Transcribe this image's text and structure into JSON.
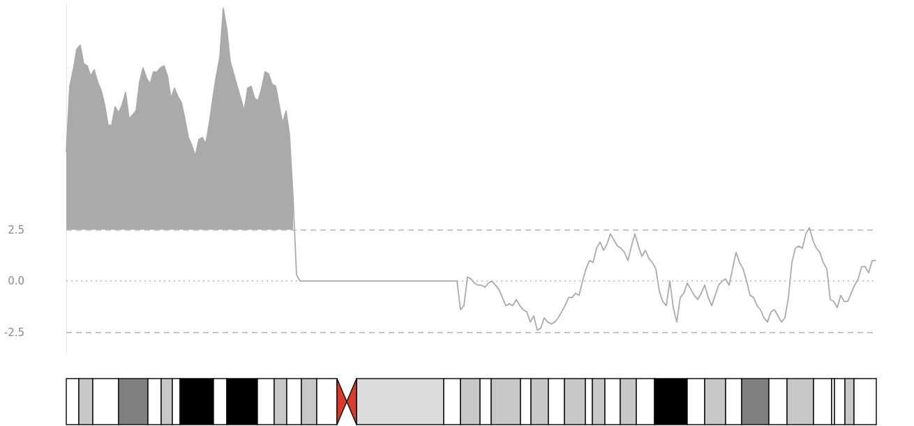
{
  "chart_data": {
    "type": "line",
    "categories": [
      null,
      null,
      null,
      null,
      null,
      null,
      null,
      null,
      null,
      null,
      null,
      null,
      null,
      null,
      null,
      null,
      null,
      null,
      null,
      null,
      null,
      null,
      null,
      null,
      null,
      null,
      null,
      null,
      null,
      null,
      null,
      null,
      null,
      null,
      null,
      null,
      null,
      null,
      null,
      null,
      null,
      null,
      null,
      null,
      null,
      null,
      null,
      null,
      null,
      null,
      null,
      null,
      null,
      null,
      null,
      null,
      null,
      null,
      null,
      null,
      null,
      null,
      null,
      null,
      null,
      null,
      null,
      null,
      null,
      null,
      null,
      null,
      null,
      null,
      null,
      null,
      null,
      null,
      null,
      null,
      null,
      null,
      null,
      null,
      null,
      null,
      null,
      null,
      null,
      null,
      null,
      null,
      null,
      null,
      null,
      null,
      null,
      null,
      null,
      null,
      null,
      null,
      null,
      null,
      null,
      null,
      null,
      null,
      null,
      null,
      null,
      null,
      null,
      null,
      null,
      null,
      null,
      null,
      null,
      null,
      null,
      null,
      null,
      null,
      null,
      null,
      null,
      null,
      null,
      null,
      null,
      null,
      null,
      null,
      null,
      null,
      null,
      null,
      null,
      null,
      null,
      null,
      null,
      null,
      null,
      null,
      null,
      null,
      null,
      null,
      null,
      null,
      null,
      null,
      null,
      null,
      null,
      null,
      null,
      null,
      null,
      null,
      null,
      null,
      null,
      null,
      null,
      null,
      null,
      null,
      null,
      null,
      null,
      null,
      null,
      null,
      null,
      null,
      null,
      null,
      null,
      null,
      null,
      null,
      null,
      null,
      null,
      null,
      null,
      null,
      null,
      null,
      null,
      null,
      null,
      null,
      null,
      null,
      null,
      null,
      null,
      null,
      null,
      null,
      null,
      null,
      null,
      null,
      null,
      null,
      null,
      null,
      null,
      null,
      null,
      null,
      null,
      null,
      null,
      null,
      null,
      null,
      null,
      null,
      null,
      null,
      null,
      null,
      null,
      null,
      null,
      null,
      null
    ],
    "series": [
      {
        "color": "#aaaaaa",
        "values": [
          6.3,
          9.5,
          10.3,
          11.3,
          11.5,
          10.6,
          10.5,
          10.0,
          10.3,
          9.7,
          9.3,
          8.6,
          7.6,
          7.6,
          8.5,
          8.2,
          8.6,
          9.2,
          7.9,
          8.1,
          8.3,
          9.7,
          10.4,
          9.9,
          9.6,
          10.2,
          10.2,
          10.4,
          10.5,
          10.0,
          8.9,
          9.4,
          9.0,
          8.7,
          7.9,
          7.0,
          6.6,
          6.1,
          6.9,
          7.0,
          6.7,
          7.7,
          8.9,
          10.0,
          10.9,
          13.3,
          12.3,
          10.7,
          10.1,
          9.5,
          8.9,
          8.3,
          9.4,
          9.5,
          8.9,
          8.8,
          9.4,
          10.2,
          10.1,
          9.6,
          9.5,
          8.6,
          7.7,
          8.3,
          7.1,
          4.1,
          0.3,
          0,
          0,
          0,
          0,
          0,
          0,
          0,
          0,
          0,
          0,
          0,
          0,
          0,
          0,
          0,
          0,
          0,
          0,
          0,
          0,
          0,
          0,
          0,
          0,
          0,
          0,
          0,
          0,
          0,
          0,
          0,
          0,
          0,
          0,
          0,
          0,
          0,
          0,
          0,
          0,
          0,
          0,
          0,
          0,
          0,
          0,
          -1.4,
          -1.2,
          0.2,
          0.1,
          -0.1,
          -0.2,
          -0.2,
          -0.3,
          -0.1,
          0.0,
          -0.2,
          -0.4,
          -0.8,
          -1.2,
          -1.1,
          -1.2,
          -0.9,
          -1.2,
          -1.4,
          -1.5,
          -2.0,
          -1.7,
          -2.4,
          -2.3,
          -1.8,
          -2.0,
          -2.1,
          -2.0,
          -1.8,
          -1.5,
          -1.2,
          -0.8,
          -0.8,
          -0.6,
          -0.7,
          0.0,
          0.6,
          1.0,
          0.9,
          1.6,
          1.9,
          1.5,
          1.8,
          2.3,
          2.0,
          1.7,
          1.6,
          1.4,
          1.0,
          1.7,
          2.3,
          1.7,
          1.2,
          1.5,
          1.1,
          0.9,
          0.6,
          -0.5,
          -1.0,
          -1.2,
          0.0,
          -1.3,
          -2.0,
          -0.8,
          -0.6,
          -0.1,
          -0.4,
          -0.7,
          -0.9,
          -0.6,
          -0.2,
          -0.8,
          -1.2,
          -0.7,
          -0.2,
          0.0,
          0.1,
          -0.2,
          0.6,
          1.4,
          0.9,
          0.6,
          0.0,
          -0.7,
          -0.8,
          -1.2,
          -1.4,
          -1.8,
          -2.0,
          -1.5,
          -1.4,
          -1.7,
          -2.0,
          -1.8,
          -0.8,
          0.9,
          1.6,
          1.7,
          1.6,
          2.3,
          2.6,
          2.0,
          1.6,
          1.4,
          0.9,
          0.6,
          -0.9,
          -1.0,
          -1.3,
          -0.7,
          -1.0,
          -1.0,
          -0.6,
          -0.2,
          0.1,
          0.7,
          0.7,
          0.4,
          1.0,
          1.0
        ],
        "lower": [
          2.5,
          2.5,
          2.5,
          2.5,
          2.5,
          2.5,
          2.5,
          2.5,
          2.5,
          2.5,
          2.5,
          2.5,
          2.5,
          2.5,
          2.5,
          2.5,
          2.5,
          2.5,
          2.5,
          2.5,
          2.5,
          2.5,
          2.5,
          2.5,
          2.5,
          2.5,
          2.5,
          2.5,
          2.5,
          2.5,
          2.5,
          2.5,
          2.5,
          2.5,
          2.5,
          2.5,
          2.5,
          2.5,
          2.5,
          2.5,
          2.5,
          2.5,
          2.5,
          2.5,
          2.5,
          2.5,
          2.5,
          2.5,
          2.5,
          2.5,
          2.5,
          2.5,
          2.5,
          2.5,
          2.5,
          2.5,
          2.5,
          2.5,
          2.5,
          2.5,
          2.5,
          2.5,
          2.5,
          2.5,
          2.5,
          2.5,
          null,
          null,
          null,
          null,
          null,
          null,
          null,
          null,
          null,
          null,
          null,
          null,
          null,
          null,
          null,
          null,
          null,
          null,
          null,
          null,
          null,
          null,
          null,
          null,
          null,
          null,
          null,
          null,
          null,
          null,
          null,
          null,
          null,
          null,
          null,
          null,
          null,
          null,
          null,
          null,
          null,
          null,
          null,
          null,
          null,
          null,
          null,
          null,
          null,
          null,
          null,
          null,
          null,
          null,
          null,
          null,
          null,
          null,
          null,
          null,
          null,
          null,
          null,
          null,
          null,
          null,
          null,
          null,
          null,
          null,
          null,
          null,
          null,
          null,
          null,
          null,
          null,
          null,
          null,
          null,
          null,
          null,
          null,
          null,
          null,
          null,
          null,
          null,
          null,
          null,
          null,
          null,
          null,
          null,
          null,
          null,
          null,
          null,
          null,
          null,
          null,
          null,
          null,
          null,
          null,
          null,
          null,
          null,
          null,
          null,
          null,
          null,
          null,
          null,
          null,
          null,
          null,
          null,
          null,
          null,
          null,
          null,
          null,
          null,
          null,
          null,
          null,
          null,
          null,
          null,
          null,
          null,
          null,
          null,
          null,
          null,
          null,
          null,
          null,
          null,
          null,
          null,
          null,
          null,
          null,
          null,
          null,
          null,
          null,
          null,
          null,
          null,
          null,
          null,
          null,
          null,
          null,
          null,
          null,
          null,
          null,
          null,
          null,
          null,
          null,
          null,
          null
        ],
        "upper": [
          6.3,
          9.5,
          10.3,
          11.3,
          11.5,
          10.6,
          10.5,
          10.0,
          10.3,
          9.7,
          9.3,
          8.6,
          7.6,
          7.6,
          8.5,
          8.2,
          8.6,
          9.2,
          7.9,
          8.1,
          8.3,
          9.7,
          10.4,
          9.9,
          9.6,
          10.2,
          10.2,
          10.4,
          10.5,
          10.0,
          8.9,
          9.4,
          9.0,
          8.7,
          7.9,
          7.0,
          6.6,
          6.1,
          6.9,
          7.0,
          6.7,
          7.7,
          8.9,
          10.0,
          10.9,
          13.3,
          12.3,
          10.7,
          10.1,
          9.5,
          8.9,
          8.3,
          9.4,
          9.5,
          8.9,
          8.8,
          9.4,
          10.2,
          10.1,
          9.6,
          9.5,
          8.6,
          7.7,
          8.3,
          7.1,
          4.1,
          null,
          null,
          null,
          null,
          null,
          null,
          null,
          null,
          null,
          null,
          null,
          null,
          null,
          null,
          null,
          null,
          null,
          null,
          null,
          null,
          null,
          null,
          null,
          null,
          null,
          null,
          null,
          null,
          null,
          null,
          null,
          null,
          null,
          null,
          null,
          null,
          null,
          null,
          null,
          null,
          null,
          null,
          null,
          null,
          null,
          null,
          null,
          null,
          null,
          null,
          null,
          null,
          null,
          null,
          null,
          null,
          null,
          null,
          null,
          null,
          null,
          null,
          null,
          null,
          null,
          null,
          null,
          null,
          null,
          null,
          null,
          null,
          null,
          null,
          null,
          null,
          null,
          null,
          null,
          null,
          null,
          null,
          null,
          null,
          null,
          null,
          null,
          null,
          null,
          null,
          null,
          null,
          null,
          null,
          null,
          null,
          null,
          null,
          null,
          null,
          null,
          null,
          null,
          null,
          null,
          null,
          null,
          null,
          null,
          null,
          null,
          null,
          null,
          null,
          null,
          null,
          null,
          null,
          null,
          null,
          null,
          null,
          null,
          null,
          null,
          null,
          null,
          null,
          null,
          null,
          null,
          null,
          null,
          null,
          null,
          null,
          null,
          null,
          null,
          null,
          null,
          null,
          null,
          null,
          null,
          null,
          null,
          null,
          null,
          null,
          null,
          null,
          null,
          null,
          null,
          null,
          null,
          null,
          null,
          null,
          null,
          null,
          null,
          null,
          null,
          null,
          null
        ]
      }
    ],
    "ylim": [
      -3.5,
      13.5
    ],
    "yticks": [
      {
        "value": -2.5,
        "label": "-2.5"
      },
      {
        "value": 0,
        "label": "0.0"
      },
      {
        "value": 2.5,
        "label": "2.5"
      }
    ],
    "ref_lines": [
      {
        "axis": "y",
        "value": 2.5,
        "color": "#b5b5b5",
        "line_style": "dashed"
      },
      {
        "axis": "y",
        "value": 0,
        "color": "#b5b5b5",
        "line_style": "dotted"
      },
      {
        "axis": "y",
        "value": -2.5,
        "color": "#b5b5b5",
        "line_style": "dashed"
      }
    ],
    "tick_labels": "y",
    "grid": false
  }
}
